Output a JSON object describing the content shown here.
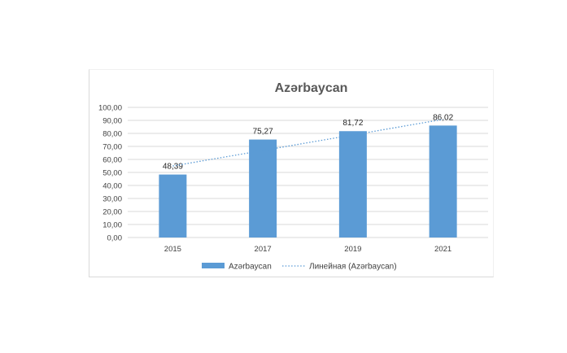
{
  "chart_data": {
    "type": "bar",
    "title": "Azərbaycan",
    "categories": [
      "2015",
      "2017",
      "2019",
      "2021"
    ],
    "series": [
      {
        "name": "Azərbaycan",
        "values": [
          48.39,
          75.27,
          81.72,
          86.02
        ],
        "color": "#5b9bd5"
      }
    ],
    "data_labels": [
      "48,39",
      "75,27",
      "81,72",
      "86,02"
    ],
    "trendline": {
      "name": "Линейная (Azərbaycan)",
      "type": "linear",
      "style": "dotted",
      "color": "#5b9bd5"
    },
    "ylim": [
      0,
      100
    ],
    "yticks": [
      0,
      10,
      20,
      30,
      40,
      50,
      60,
      70,
      80,
      90,
      100
    ],
    "ytick_labels": [
      "0,00",
      "10,00",
      "20,00",
      "30,00",
      "40,00",
      "50,00",
      "60,00",
      "70,00",
      "80,00",
      "90,00",
      "100,00"
    ],
    "grid": true,
    "legend_position": "bottom",
    "xlabel": "",
    "ylabel": ""
  }
}
